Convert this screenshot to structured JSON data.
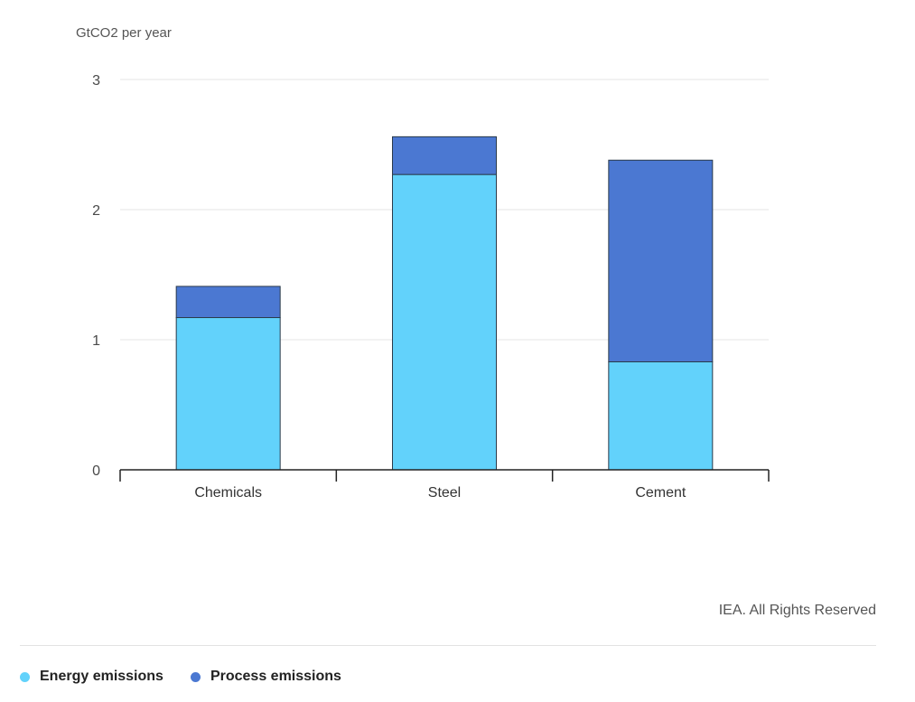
{
  "chart_data": {
    "type": "bar",
    "stacked": true,
    "categories": [
      "Chemicals",
      "Steel",
      "Cement"
    ],
    "series": [
      {
        "name": "Energy emissions",
        "values": [
          1.17,
          2.27,
          0.83
        ]
      },
      {
        "name": "Process emissions",
        "values": [
          0.24,
          0.29,
          1.55
        ]
      }
    ],
    "ylabel": "GtCO2 per year",
    "yticks": [
      "0",
      "1",
      "2",
      "3"
    ],
    "ylim": [
      0,
      3
    ],
    "grid": true,
    "legend_position": "bottom-left",
    "colors": {
      "energy": "#62d2fb",
      "process": "#4b78d2",
      "bar_outline": "#2a3a4a",
      "grid": "#e6e6e6",
      "axis": "#222222"
    }
  },
  "source_note": "IEA. All Rights Reserved",
  "legend": {
    "items": [
      {
        "label": "Energy emissions",
        "color": "#62d2fb"
      },
      {
        "label": "Process emissions",
        "color": "#4b78d2"
      }
    ]
  }
}
